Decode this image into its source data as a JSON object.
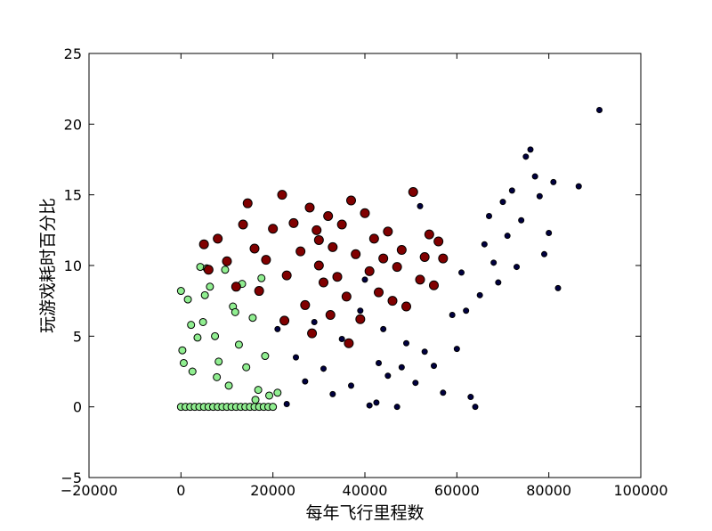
{
  "chart_data": {
    "type": "scatter",
    "x_label": "每年飞行里程数",
    "y_label": "玩游戏耗时百分比",
    "xlim": [
      -20000,
      100000
    ],
    "xticks": [
      {
        "value": -20000,
        "label": "−20000"
      },
      0,
      20000,
      40000,
      60000,
      80000,
      100000
    ],
    "ylim": [
      -5,
      25
    ],
    "yticks": [
      {
        "value": -5,
        "label": "−5"
      },
      0,
      5,
      10,
      15,
      20,
      25
    ],
    "grid": false,
    "series": [
      {
        "color": "#90ee90",
        "marker_size": 4,
        "x": [
          0,
          1000,
          2000,
          3000,
          4000,
          5000,
          6000,
          7000,
          8000,
          9000,
          10000,
          11000,
          12000,
          13000,
          14000,
          15000,
          16000,
          17000,
          18000,
          19000,
          20000,
          0,
          300,
          1500,
          2500,
          4200,
          4800,
          5600,
          6300,
          7400,
          8200,
          9600,
          10400,
          11300,
          12600,
          13300,
          14200,
          15600,
          16800,
          17500,
          18300,
          19200,
          21000,
          2200,
          5200,
          7800,
          11800,
          16200,
          600,
          3600
        ],
        "values": [
          0,
          0,
          0,
          0,
          0,
          0,
          0,
          0,
          0,
          0,
          0,
          0,
          0,
          0,
          0,
          0,
          0,
          0,
          0,
          0,
          0,
          8.2,
          4,
          7.6,
          2.5,
          9.9,
          6,
          9.8,
          8.5,
          5,
          3.2,
          9.7,
          1.5,
          7.1,
          4.4,
          8.7,
          2.8,
          6.3,
          1.2,
          9.1,
          3.6,
          0.8,
          1,
          5.8,
          7.9,
          2.1,
          6.7,
          0.5,
          3.1,
          4.9
        ]
      },
      {
        "color": "#800000",
        "marker_size": 5,
        "x": [
          5000,
          6000,
          8000,
          10000,
          12000,
          13500,
          14500,
          16000,
          17000,
          18500,
          20000,
          22000,
          22500,
          23000,
          24500,
          26000,
          27000,
          28000,
          28500,
          29500,
          30000,
          31000,
          32000,
          32500,
          33000,
          34000,
          35000,
          36000,
          37000,
          38000,
          39000,
          40000,
          41000,
          42000,
          43000,
          44000,
          45000,
          46000,
          47000,
          48000,
          49000,
          50500,
          52000,
          53000,
          54000,
          55000,
          56000,
          57000,
          30000,
          36500
        ],
        "values": [
          11.5,
          9.7,
          11.9,
          10.3,
          8.5,
          12.9,
          14.4,
          11.2,
          8.2,
          10.4,
          12.6,
          15,
          6.1,
          9.3,
          13,
          11,
          7.2,
          14.1,
          5.2,
          12.5,
          10,
          8.8,
          13.5,
          6.5,
          11.3,
          9.2,
          12.9,
          7.8,
          14.6,
          10.8,
          6.2,
          13.7,
          9.6,
          11.9,
          8.1,
          10.5,
          12.4,
          7.5,
          9.9,
          11.1,
          7.1,
          15.2,
          9,
          10.6,
          12.2,
          8.6,
          11.7,
          10.5,
          11.8,
          4.5
        ]
      },
      {
        "color": "#000040",
        "marker_size": 3,
        "x": [
          21000,
          23000,
          25000,
          27000,
          29000,
          31000,
          33000,
          35000,
          37000,
          39000,
          41000,
          43000,
          45000,
          47000,
          49000,
          51000,
          53000,
          55000,
          57000,
          59000,
          61000,
          63000,
          64000,
          65000,
          66000,
          67000,
          68000,
          69000,
          70000,
          71000,
          72000,
          73000,
          74000,
          75000,
          76000,
          77000,
          78000,
          79000,
          80000,
          81000,
          82000,
          86500,
          91000,
          40000,
          44000,
          48000,
          52000,
          60000,
          62000,
          42500
        ],
        "values": [
          5.5,
          0.2,
          3.5,
          1.8,
          6,
          2.7,
          0.9,
          4.8,
          1.5,
          6.8,
          0.1,
          3.1,
          2.2,
          0,
          4.5,
          1.7,
          3.9,
          2.9,
          1,
          6.5,
          9.5,
          0.7,
          0,
          7.9,
          11.5,
          13.5,
          10.2,
          8.8,
          14.5,
          12.1,
          15.3,
          9.9,
          13.2,
          17.7,
          18.2,
          16.3,
          14.9,
          10.8,
          12.3,
          15.9,
          8.4,
          15.6,
          21,
          9,
          5.5,
          2.8,
          14.2,
          4.1,
          6.8,
          0.3
        ]
      }
    ]
  }
}
